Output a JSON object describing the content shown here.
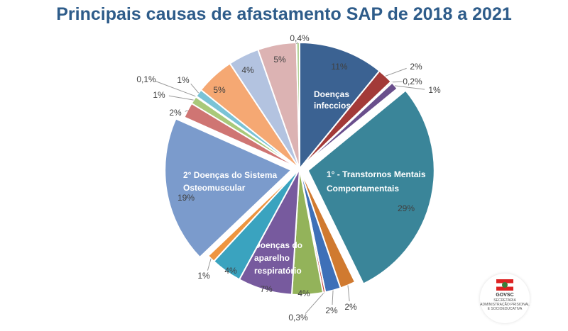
{
  "chart_data": {
    "type": "pie",
    "title": "Principais causas de afastamento SAP de 2018 a 2021",
    "start": "top",
    "direction": "clockwise",
    "slices": [
      {
        "value": 11,
        "label": "11%",
        "category": "Doenças infecciosas",
        "color": "#3b6292"
      },
      {
        "value": 2,
        "label": "2%",
        "color": "#a33a38"
      },
      {
        "value": 0.2,
        "label": "0,2%",
        "color": "#8a9a4a"
      },
      {
        "value": 1,
        "label": "1%",
        "color": "#6a4f8c"
      },
      {
        "value": 29,
        "label": "29%",
        "category": "1° - Transtornos Mentais Comportamentais",
        "color": "#3a8599",
        "exploded": true
      },
      {
        "value": 2,
        "label": "2%",
        "color": "#d07a30"
      },
      {
        "value": 2,
        "label": "2%",
        "color": "#3e70b8"
      },
      {
        "value": 0.3,
        "label": "0,3%",
        "color": "#c0403c"
      },
      {
        "value": 4,
        "label": "4%",
        "color": "#93b35a"
      },
      {
        "value": 7,
        "label": "7%",
        "category": "Doenças do aparelho respiratório",
        "color": "#775a9e"
      },
      {
        "value": 4,
        "label": "4%",
        "color": "#3aa3bf"
      },
      {
        "value": 1,
        "label": "1%",
        "color": "#ee9540"
      },
      {
        "value": 19,
        "label": "19%",
        "category": "2° Doenças do Sistema Osteomuscular",
        "color": "#7b9bcc",
        "exploded": true
      },
      {
        "value": 2,
        "label": "2%",
        "color": "#cf7573"
      },
      {
        "value": 1,
        "label": "1%",
        "color": "#a9c97a"
      },
      {
        "value": 0.1,
        "label": "0,1%",
        "color": "#9b87b8"
      },
      {
        "value": 1,
        "label": "1%",
        "color": "#7ac3d6"
      },
      {
        "value": 5,
        "label": "5%",
        "color": "#f5a873"
      },
      {
        "value": 4,
        "label": "4%",
        "color": "#b3c3e0"
      },
      {
        "value": 5,
        "label": "5%",
        "color": "#dcb3b3"
      },
      {
        "value": 0.4,
        "label": "0,4%",
        "color": "#b5d39a"
      }
    ]
  },
  "logo": {
    "text": "GOVSC",
    "subtitle": "SECRETARIA ADMINISTRAÇÃO PRISIONAL E SOCIOEDUCATIVA"
  }
}
